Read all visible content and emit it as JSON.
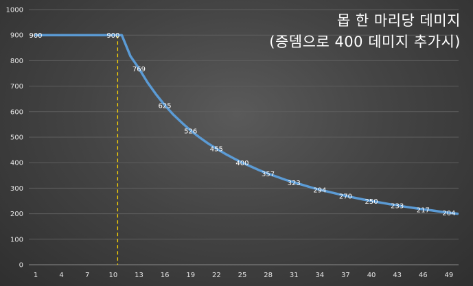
{
  "chart_data": {
    "type": "line",
    "title": "몹 한 마리당 데미지",
    "subtitle": "(증뎀으로 400 데미지 추가시)",
    "xlabel": "",
    "ylabel": "",
    "ylim": [
      0,
      1000
    ],
    "yticks": [
      0,
      100,
      200,
      300,
      400,
      500,
      600,
      700,
      800,
      900,
      1000
    ],
    "xlim": [
      1,
      50
    ],
    "xticks": [
      1,
      4,
      7,
      10,
      13,
      16,
      19,
      22,
      25,
      28,
      31,
      34,
      37,
      40,
      43,
      46,
      49
    ],
    "grid": true,
    "legend": "none",
    "series": [
      {
        "color": "#5b9bd5",
        "x": [
          1,
          2,
          3,
          4,
          5,
          6,
          7,
          8,
          9,
          10,
          11,
          12,
          13,
          14,
          15,
          16,
          17,
          18,
          19,
          20,
          21,
          22,
          23,
          24,
          25,
          26,
          27,
          28,
          29,
          30,
          31,
          32,
          33,
          34,
          35,
          36,
          37,
          38,
          39,
          40,
          41,
          42,
          43,
          44,
          45,
          46,
          47,
          48,
          49,
          50
        ],
        "values": [
          900,
          900,
          900,
          900,
          900,
          900,
          900,
          900,
          900,
          900,
          900,
          818,
          769,
          714,
          667,
          625,
          588,
          556,
          526,
          500,
          476,
          455,
          435,
          417,
          400,
          385,
          370,
          357,
          345,
          333,
          323,
          313,
          303,
          294,
          286,
          278,
          270,
          263,
          256,
          250,
          244,
          238,
          233,
          227,
          222,
          217,
          213,
          208,
          204,
          200
        ]
      }
    ],
    "data_labels": [
      {
        "x": 1,
        "text": "900"
      },
      {
        "x": 10,
        "text": "900"
      },
      {
        "x": 13,
        "text": "769"
      },
      {
        "x": 16,
        "text": "625"
      },
      {
        "x": 19,
        "text": "526"
      },
      {
        "x": 22,
        "text": "455"
      },
      {
        "x": 25,
        "text": "400"
      },
      {
        "x": 28,
        "text": "357"
      },
      {
        "x": 31,
        "text": "323"
      },
      {
        "x": 34,
        "text": "294"
      },
      {
        "x": 37,
        "text": "270"
      },
      {
        "x": 40,
        "text": "250"
      },
      {
        "x": 43,
        "text": "233"
      },
      {
        "x": 46,
        "text": "217"
      },
      {
        "x": 49,
        "text": "204"
      }
    ],
    "reference_line": {
      "x": 11,
      "color": "#ffd700",
      "style": "dashed"
    }
  }
}
